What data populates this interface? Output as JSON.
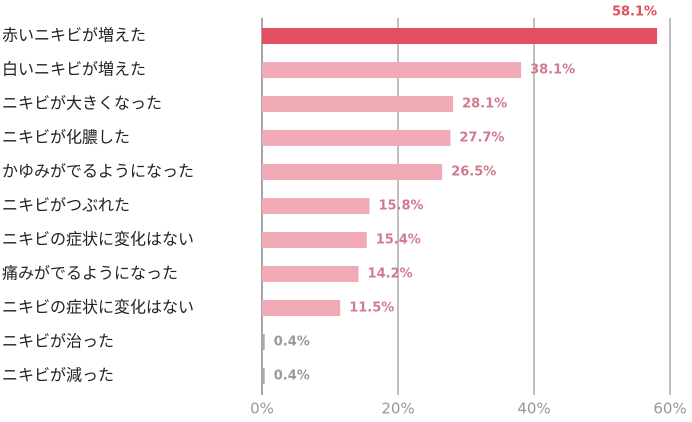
{
  "chart_data": {
    "type": "bar",
    "orientation": "horizontal",
    "categories": [
      "赤いニキビが増えた",
      "白いニキビが増えた",
      "ニキビが大きくなった",
      "ニキビが化膿した",
      "かゆみがでるようになった",
      "ニキビがつぶれた",
      "ニキビの症状に変化はない",
      "痛みがでるようになった",
      "ニキビの症状に変化はない",
      "ニキビが治った",
      "ニキビが減った"
    ],
    "values": [
      58.1,
      38.1,
      28.1,
      27.7,
      26.5,
      15.8,
      15.4,
      14.2,
      11.5,
      0.4,
      0.4
    ],
    "value_labels": [
      "58.1%",
      "38.1%",
      "28.1%",
      "27.7%",
      "26.5%",
      "15.8%",
      "15.4%",
      "14.2%",
      "11.5%",
      "0.4%",
      "0.4%"
    ],
    "colors": [
      "#e2505f",
      "#f0aab5",
      "#f0aab5",
      "#f0aab5",
      "#f0aab5",
      "#f0aab5",
      "#f0aab5",
      "#f0aab5",
      "#f0aab5",
      "#aaaaaa",
      "#aaaaaa"
    ],
    "label_colors": [
      "#e2505f",
      "#d27a8e",
      "#d27a8e",
      "#d27a8e",
      "#d27a8e",
      "#d27a8e",
      "#d27a8e",
      "#d27a8e",
      "#d27a8e",
      "#999999",
      "#999999"
    ],
    "xlim": [
      0,
      60
    ],
    "xticks": [
      {
        "value": 0,
        "label": "0%"
      },
      {
        "value": 20,
        "label": "20%"
      },
      {
        "value": 40,
        "label": "40%"
      },
      {
        "value": 60,
        "label": "60%"
      }
    ],
    "grid": true
  }
}
